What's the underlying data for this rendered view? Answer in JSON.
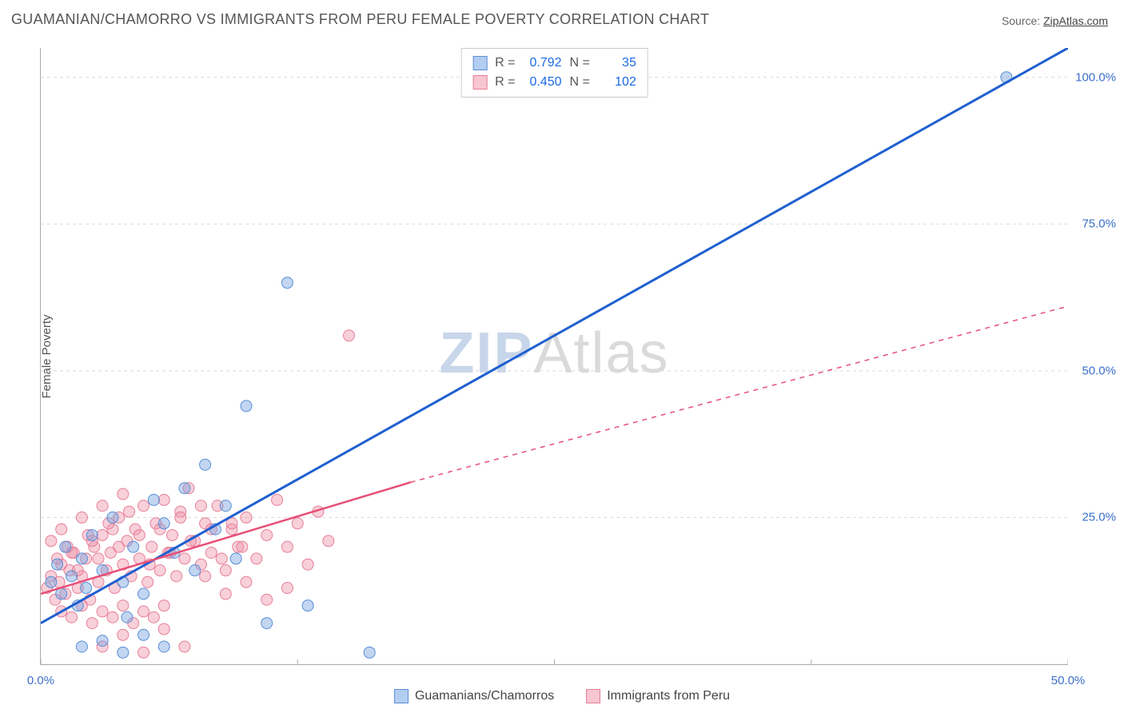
{
  "header": {
    "title": "GUAMANIAN/CHAMORRO VS IMMIGRANTS FROM PERU FEMALE POVERTY CORRELATION CHART",
    "source_label": "Source: ",
    "source_value": "ZipAtlas.com"
  },
  "axes": {
    "ylabel": "Female Poverty",
    "xlim": [
      0,
      50
    ],
    "ylim": [
      0,
      105
    ],
    "xticks": [
      0,
      12.5,
      25,
      37.5,
      50
    ],
    "xtick_labels": [
      "0.0%",
      "",
      "",
      "",
      "50.0%"
    ],
    "yticks": [
      25,
      50,
      75,
      100
    ],
    "ytick_labels": [
      "25.0%",
      "50.0%",
      "75.0%",
      "100.0%"
    ],
    "grid_color": "#d9d9d9",
    "grid_dash": "4,4",
    "axis_color": "#aaaaaa"
  },
  "watermark": {
    "zip": "ZIP",
    "atlas": "Atlas"
  },
  "legend_box": {
    "rows": [
      {
        "swatch_fill": "#b3cdf0",
        "swatch_border": "#5a8fd8",
        "r_label": "R =",
        "r_value": "0.792",
        "n_label": "N =",
        "n_value": "35"
      },
      {
        "swatch_fill": "#f7c6d0",
        "swatch_border": "#e77f99",
        "r_label": "R =",
        "r_value": "0.450",
        "n_label": "N =",
        "n_value": "102"
      }
    ]
  },
  "bottom_legend": {
    "items": [
      {
        "swatch_fill": "#b3cdf0",
        "swatch_border": "#5a8fd8",
        "label": "Guamanians/Chamorros"
      },
      {
        "swatch_fill": "#f7c6d0",
        "swatch_border": "#e77f99",
        "label": "Immigrants from Peru"
      }
    ]
  },
  "series": {
    "blue": {
      "color_fill": "rgba(120,165,225,0.45)",
      "color_stroke": "#5a8fd8",
      "trend_color": "#1f5fd0",
      "trend_width": 3,
      "trend": {
        "x1": 0,
        "y1": 7,
        "x2": 50,
        "y2": 105
      },
      "points": [
        [
          0.5,
          14
        ],
        [
          0.8,
          17
        ],
        [
          1,
          12
        ],
        [
          1.2,
          20
        ],
        [
          1.5,
          15
        ],
        [
          1.8,
          10
        ],
        [
          2,
          18
        ],
        [
          2.2,
          13
        ],
        [
          2.5,
          22
        ],
        [
          3,
          16
        ],
        [
          3.5,
          25
        ],
        [
          4,
          14
        ],
        [
          4.2,
          8
        ],
        [
          4.5,
          20
        ],
        [
          5,
          12
        ],
        [
          5.5,
          28
        ],
        [
          6,
          24
        ],
        [
          6.5,
          19
        ],
        [
          7,
          30
        ],
        [
          7.5,
          16
        ],
        [
          8,
          34
        ],
        [
          8.5,
          23
        ],
        [
          9,
          27
        ],
        [
          9.5,
          18
        ],
        [
          10,
          44
        ],
        [
          11,
          7
        ],
        [
          12,
          65
        ],
        [
          13,
          10
        ],
        [
          2,
          3
        ],
        [
          3,
          4
        ],
        [
          4,
          2
        ],
        [
          5,
          5
        ],
        [
          6,
          3
        ],
        [
          16,
          2
        ],
        [
          47,
          100
        ]
      ]
    },
    "pink": {
      "color_fill": "rgba(240,150,170,0.45)",
      "color_stroke": "#e77f99",
      "trend_color": "#e74f77",
      "trend_width": 2.5,
      "trend_solid": {
        "x1": 0,
        "y1": 12,
        "x2": 18,
        "y2": 31
      },
      "trend_dashed": {
        "x1": 18,
        "y1": 31,
        "x2": 50,
        "y2": 61
      },
      "trend_dash": "6,6",
      "points": [
        [
          0.3,
          13
        ],
        [
          0.5,
          15
        ],
        [
          0.7,
          11
        ],
        [
          0.9,
          14
        ],
        [
          1,
          17
        ],
        [
          1.2,
          12
        ],
        [
          1.4,
          16
        ],
        [
          1.6,
          19
        ],
        [
          1.8,
          13
        ],
        [
          2,
          15
        ],
        [
          2.2,
          18
        ],
        [
          2.4,
          11
        ],
        [
          2.6,
          20
        ],
        [
          2.8,
          14
        ],
        [
          3,
          22
        ],
        [
          3.2,
          16
        ],
        [
          3.4,
          19
        ],
        [
          3.6,
          13
        ],
        [
          3.8,
          25
        ],
        [
          4,
          17
        ],
        [
          4.2,
          21
        ],
        [
          4.4,
          15
        ],
        [
          4.6,
          23
        ],
        [
          4.8,
          18
        ],
        [
          5,
          27
        ],
        [
          5.2,
          14
        ],
        [
          5.4,
          20
        ],
        [
          5.6,
          24
        ],
        [
          5.8,
          16
        ],
        [
          6,
          28
        ],
        [
          6.2,
          19
        ],
        [
          6.4,
          22
        ],
        [
          6.6,
          15
        ],
        [
          6.8,
          26
        ],
        [
          7,
          18
        ],
        [
          7.2,
          30
        ],
        [
          7.5,
          21
        ],
        [
          7.8,
          17
        ],
        [
          8,
          24
        ],
        [
          8.3,
          19
        ],
        [
          8.6,
          27
        ],
        [
          9,
          16
        ],
        [
          9.3,
          23
        ],
        [
          9.6,
          20
        ],
        [
          10,
          25
        ],
        [
          10.5,
          18
        ],
        [
          11,
          22
        ],
        [
          11.5,
          28
        ],
        [
          12,
          20
        ],
        [
          12.5,
          24
        ],
        [
          13,
          17
        ],
        [
          13.5,
          26
        ],
        [
          14,
          21
        ],
        [
          15,
          56
        ],
        [
          1,
          9
        ],
        [
          1.5,
          8
        ],
        [
          2,
          10
        ],
        [
          2.5,
          7
        ],
        [
          3,
          9
        ],
        [
          3.5,
          8
        ],
        [
          4,
          10
        ],
        [
          4.5,
          7
        ],
        [
          5,
          9
        ],
        [
          5.5,
          8
        ],
        [
          6,
          10
        ],
        [
          0.5,
          21
        ],
        [
          1,
          23
        ],
        [
          1.5,
          19
        ],
        [
          2,
          25
        ],
        [
          2.5,
          21
        ],
        [
          3,
          27
        ],
        [
          3.5,
          23
        ],
        [
          4,
          29
        ],
        [
          0.8,
          18
        ],
        [
          1.3,
          20
        ],
        [
          1.8,
          16
        ],
        [
          2.3,
          22
        ],
        [
          2.8,
          18
        ],
        [
          3.3,
          24
        ],
        [
          3.8,
          20
        ],
        [
          4.3,
          26
        ],
        [
          4.8,
          22
        ],
        [
          5.3,
          17
        ],
        [
          5.8,
          23
        ],
        [
          6.3,
          19
        ],
        [
          6.8,
          25
        ],
        [
          7.3,
          21
        ],
        [
          7.8,
          27
        ],
        [
          8.3,
          23
        ],
        [
          8.8,
          18
        ],
        [
          9.3,
          24
        ],
        [
          9.8,
          20
        ],
        [
          3,
          3
        ],
        [
          4,
          5
        ],
        [
          5,
          2
        ],
        [
          6,
          6
        ],
        [
          7,
          3
        ],
        [
          8,
          15
        ],
        [
          9,
          12
        ],
        [
          10,
          14
        ],
        [
          11,
          11
        ],
        [
          12,
          13
        ]
      ]
    }
  },
  "marker_radius": 7
}
